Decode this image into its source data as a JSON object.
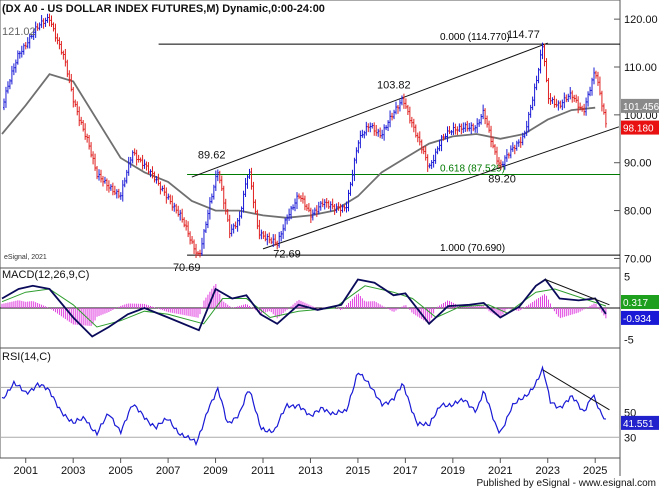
{
  "header": {
    "title": "(DX A0 - US DOLLAR INDEX FUTURES,M) Dynamic,0:00-24:00",
    "overlay_text": "121.02"
  },
  "colors": {
    "up": "#1a1ad6",
    "down": "#e02020",
    "ma": "#707070",
    "fib": "#007a00",
    "macd_hist": "#e040e0",
    "signal": "#2e9e2e",
    "price_badge": "#e81010",
    "ma_badge": "#8a8a8a",
    "macd_badge": "#1ea01e",
    "rsi_badge": "#2222cc"
  },
  "chart_data": [
    {
      "type": "candlestick",
      "title": "(DX A0 - US DOLLAR INDEX FUTURES,M) Dynamic,0:00-24:00",
      "ylim": [
        68,
        124
      ],
      "yticks": [
        "120.00",
        "110.00",
        "100.00",
        "90.00",
        "80.00",
        "70.00"
      ],
      "x_labels": [
        "2001",
        "2003",
        "2005",
        "2007",
        "2009",
        "2011",
        "2013",
        "2015",
        "2017",
        "2019",
        "2021",
        "2023",
        "2025"
      ],
      "path_points": [
        {
          "x": 2000.0,
          "y": 101.5
        },
        {
          "x": 2000.7,
          "y": 113.0
        },
        {
          "x": 2001.3,
          "y": 117.0
        },
        {
          "x": 2002.0,
          "y": 120.5
        },
        {
          "x": 2002.6,
          "y": 112.0
        },
        {
          "x": 2003.0,
          "y": 103.0
        },
        {
          "x": 2003.6,
          "y": 95.0
        },
        {
          "x": 2004.0,
          "y": 87.0
        },
        {
          "x": 2004.6,
          "y": 85.0
        },
        {
          "x": 2005.0,
          "y": 83.0
        },
        {
          "x": 2005.5,
          "y": 92.0
        },
        {
          "x": 2006.0,
          "y": 90.0
        },
        {
          "x": 2006.6,
          "y": 85.0
        },
        {
          "x": 2007.0,
          "y": 83.0
        },
        {
          "x": 2007.5,
          "y": 79.0
        },
        {
          "x": 2008.0,
          "y": 73.0
        },
        {
          "x": 2008.3,
          "y": 70.7
        },
        {
          "x": 2008.7,
          "y": 80.0
        },
        {
          "x": 2009.1,
          "y": 88.0
        },
        {
          "x": 2009.6,
          "y": 76.0
        },
        {
          "x": 2010.0,
          "y": 78.0
        },
        {
          "x": 2010.4,
          "y": 88.5
        },
        {
          "x": 2010.8,
          "y": 76.0
        },
        {
          "x": 2011.3,
          "y": 73.5
        },
        {
          "x": 2011.6,
          "y": 72.7
        },
        {
          "x": 2012.0,
          "y": 79.0
        },
        {
          "x": 2012.5,
          "y": 83.0
        },
        {
          "x": 2013.0,
          "y": 79.0
        },
        {
          "x": 2013.5,
          "y": 82.0
        },
        {
          "x": 2014.0,
          "y": 80.0
        },
        {
          "x": 2014.5,
          "y": 81.0
        },
        {
          "x": 2015.0,
          "y": 94.0
        },
        {
          "x": 2015.5,
          "y": 98.0
        },
        {
          "x": 2016.0,
          "y": 96.0
        },
        {
          "x": 2016.5,
          "y": 100.0
        },
        {
          "x": 2016.9,
          "y": 103.8
        },
        {
          "x": 2017.5,
          "y": 95.0
        },
        {
          "x": 2018.0,
          "y": 89.0
        },
        {
          "x": 2018.5,
          "y": 95.0
        },
        {
          "x": 2019.0,
          "y": 96.5
        },
        {
          "x": 2019.5,
          "y": 98.0
        },
        {
          "x": 2020.0,
          "y": 97.0
        },
        {
          "x": 2020.3,
          "y": 100.5
        },
        {
          "x": 2020.8,
          "y": 92.0
        },
        {
          "x": 2021.0,
          "y": 89.2
        },
        {
          "x": 2021.5,
          "y": 92.5
        },
        {
          "x": 2022.0,
          "y": 96.0
        },
        {
          "x": 2022.5,
          "y": 106.0
        },
        {
          "x": 2022.8,
          "y": 114.7
        },
        {
          "x": 2023.0,
          "y": 104.0
        },
        {
          "x": 2023.5,
          "y": 102.0
        },
        {
          "x": 2024.0,
          "y": 104.0
        },
        {
          "x": 2024.5,
          "y": 101.0
        },
        {
          "x": 2025.0,
          "y": 109.0
        },
        {
          "x": 2025.2,
          "y": 104.0
        },
        {
          "x": 2025.45,
          "y": 98.2
        }
      ],
      "moving_average": [
        {
          "x": 2000.0,
          "y": 96
        },
        {
          "x": 2001.0,
          "y": 102
        },
        {
          "x": 2002.0,
          "y": 108.5
        },
        {
          "x": 2003.0,
          "y": 107
        },
        {
          "x": 2004.0,
          "y": 99
        },
        {
          "x": 2005.0,
          "y": 91
        },
        {
          "x": 2006.0,
          "y": 88
        },
        {
          "x": 2007.0,
          "y": 86
        },
        {
          "x": 2008.0,
          "y": 82
        },
        {
          "x": 2009.0,
          "y": 80
        },
        {
          "x": 2010.0,
          "y": 80
        },
        {
          "x": 2011.0,
          "y": 79
        },
        {
          "x": 2012.0,
          "y": 78.5
        },
        {
          "x": 2013.0,
          "y": 79
        },
        {
          "x": 2014.0,
          "y": 80
        },
        {
          "x": 2015.0,
          "y": 83
        },
        {
          "x": 2016.0,
          "y": 88
        },
        {
          "x": 2017.0,
          "y": 91
        },
        {
          "x": 2018.0,
          "y": 94
        },
        {
          "x": 2019.0,
          "y": 95.5
        },
        {
          "x": 2020.0,
          "y": 96
        },
        {
          "x": 2021.0,
          "y": 95
        },
        {
          "x": 2022.0,
          "y": 96
        },
        {
          "x": 2023.0,
          "y": 99
        },
        {
          "x": 2024.0,
          "y": 101
        },
        {
          "x": 2025.0,
          "y": 101.5
        }
      ],
      "channel_lines": [
        [
          {
            "x": 2008.0,
            "y": 87.0
          },
          {
            "x": 2023.0,
            "y": 115.0
          }
        ],
        [
          {
            "x": 2011.0,
            "y": 72.0
          },
          {
            "x": 2026.0,
            "y": 97.5
          }
        ]
      ],
      "horizontal_levels": [
        {
          "value": 114.77,
          "label": "0.000 (114.770)",
          "color": "#000000",
          "x_from": 2006.6
        },
        {
          "value": 87.529,
          "label": "0.618 (87.529)",
          "color": "#007a00",
          "x_from": 2007.8
        },
        {
          "value": 70.69,
          "label": "1.000 (70.690)",
          "color": "#000000",
          "x_from": 2007.8
        }
      ],
      "annotations": [
        {
          "text": "114.77",
          "x": 2022.8,
          "y": 114.77
        },
        {
          "text": "103.82",
          "x": 2016.9,
          "y": 103.82
        },
        {
          "text": "89.62",
          "x": 2009.1,
          "y": 89.62
        },
        {
          "text": "89.20",
          "x": 2021.0,
          "y": 89.2
        },
        {
          "text": "72.69",
          "x": 2011.6,
          "y": 72.69
        },
        {
          "text": "70.69",
          "x": 2008.3,
          "y": 70.69
        }
      ],
      "price_badges": [
        {
          "text": "101.456",
          "value": 101.456,
          "color": "#8a8a8a"
        },
        {
          "text": "98.180",
          "value": 98.18,
          "color": "#e81010"
        }
      ],
      "watermark": "eSignal, 2021"
    },
    {
      "type": "line",
      "title": "MACD(12,26,9,C)",
      "ylim": [
        -6,
        6
      ],
      "yticks": [
        "5",
        "-5"
      ],
      "series": [
        {
          "name": "MACD",
          "color": "#0a0a5a",
          "points": [
            {
              "x": 2000.0,
              "y": 1.5
            },
            {
              "x": 2000.7,
              "y": 3.0
            },
            {
              "x": 2001.3,
              "y": 3.5
            },
            {
              "x": 2002.0,
              "y": 3.0
            },
            {
              "x": 2003.0,
              "y": -1.5
            },
            {
              "x": 2003.8,
              "y": -4.5
            },
            {
              "x": 2004.5,
              "y": -3.0
            },
            {
              "x": 2005.3,
              "y": -1.0
            },
            {
              "x": 2006.0,
              "y": 0.0
            },
            {
              "x": 2007.0,
              "y": -1.5
            },
            {
              "x": 2008.3,
              "y": -3.5
            },
            {
              "x": 2009.0,
              "y": 3.0
            },
            {
              "x": 2009.7,
              "y": 1.5
            },
            {
              "x": 2010.3,
              "y": 2.0
            },
            {
              "x": 2010.9,
              "y": -1.0
            },
            {
              "x": 2011.6,
              "y": -2.5
            },
            {
              "x": 2012.5,
              "y": 0.5
            },
            {
              "x": 2013.3,
              "y": -0.3
            },
            {
              "x": 2014.3,
              "y": 0.5
            },
            {
              "x": 2015.0,
              "y": 4.5
            },
            {
              "x": 2015.7,
              "y": 4.0
            },
            {
              "x": 2016.5,
              "y": 2.0
            },
            {
              "x": 2017.0,
              "y": 2.3
            },
            {
              "x": 2018.0,
              "y": -2.5
            },
            {
              "x": 2018.8,
              "y": 0.3
            },
            {
              "x": 2019.7,
              "y": 0.5
            },
            {
              "x": 2020.3,
              "y": 0.8
            },
            {
              "x": 2021.0,
              "y": -1.5
            },
            {
              "x": 2021.8,
              "y": 0.2
            },
            {
              "x": 2022.5,
              "y": 3.5
            },
            {
              "x": 2022.9,
              "y": 4.5
            },
            {
              "x": 2023.5,
              "y": 1.5
            },
            {
              "x": 2024.3,
              "y": 1.2
            },
            {
              "x": 2025.0,
              "y": 1.5
            },
            {
              "x": 2025.45,
              "y": -0.934
            }
          ]
        },
        {
          "name": "Signal",
          "color": "#2e9e2e",
          "points": [
            {
              "x": 2000.0,
              "y": 1.0
            },
            {
              "x": 2001.0,
              "y": 2.5
            },
            {
              "x": 2002.0,
              "y": 3.0
            },
            {
              "x": 2003.0,
              "y": 0.5
            },
            {
              "x": 2004.0,
              "y": -3.0
            },
            {
              "x": 2005.0,
              "y": -2.0
            },
            {
              "x": 2006.0,
              "y": -0.5
            },
            {
              "x": 2007.0,
              "y": -1.0
            },
            {
              "x": 2008.5,
              "y": -2.5
            },
            {
              "x": 2009.3,
              "y": 1.5
            },
            {
              "x": 2010.3,
              "y": 1.5
            },
            {
              "x": 2011.3,
              "y": -1.5
            },
            {
              "x": 2012.5,
              "y": -0.5
            },
            {
              "x": 2014.0,
              "y": 0.0
            },
            {
              "x": 2015.3,
              "y": 3.5
            },
            {
              "x": 2016.5,
              "y": 2.5
            },
            {
              "x": 2017.3,
              "y": 1.5
            },
            {
              "x": 2018.3,
              "y": -1.5
            },
            {
              "x": 2019.3,
              "y": 0.2
            },
            {
              "x": 2020.5,
              "y": 0.5
            },
            {
              "x": 2021.3,
              "y": -0.8
            },
            {
              "x": 2022.5,
              "y": 2.5
            },
            {
              "x": 2023.3,
              "y": 3.0
            },
            {
              "x": 2024.5,
              "y": 1.5
            },
            {
              "x": 2025.45,
              "y": 0.317
            }
          ]
        }
      ],
      "divergence_line": [
        {
          "x": 2022.9,
          "y": 4.5
        },
        {
          "x": 2025.6,
          "y": 0.5
        }
      ],
      "badges": [
        {
          "text": "0.317",
          "value": 0.317,
          "color": "#1ea01e"
        },
        {
          "text": "-0.934",
          "value": -0.934,
          "color": "#1a1ad6"
        }
      ]
    },
    {
      "type": "line",
      "title": "RSI(14,C)",
      "ylim": [
        15,
        100
      ],
      "yticks": [
        "50",
        "30"
      ],
      "series": [
        {
          "name": "RSI",
          "color": "#1a1ad6",
          "points": [
            {
              "x": 2000.0,
              "y": 62
            },
            {
              "x": 2000.5,
              "y": 72
            },
            {
              "x": 2001.0,
              "y": 66
            },
            {
              "x": 2001.5,
              "y": 73
            },
            {
              "x": 2002.0,
              "y": 66
            },
            {
              "x": 2002.5,
              "y": 52
            },
            {
              "x": 2003.0,
              "y": 40
            },
            {
              "x": 2003.5,
              "y": 46
            },
            {
              "x": 2004.0,
              "y": 33
            },
            {
              "x": 2004.5,
              "y": 48
            },
            {
              "x": 2005.0,
              "y": 36
            },
            {
              "x": 2005.5,
              "y": 55
            },
            {
              "x": 2006.0,
              "y": 47
            },
            {
              "x": 2006.5,
              "y": 38
            },
            {
              "x": 2007.0,
              "y": 44
            },
            {
              "x": 2007.5,
              "y": 34
            },
            {
              "x": 2008.2,
              "y": 24
            },
            {
              "x": 2008.7,
              "y": 55
            },
            {
              "x": 2009.1,
              "y": 68
            },
            {
              "x": 2009.5,
              "y": 40
            },
            {
              "x": 2010.0,
              "y": 50
            },
            {
              "x": 2010.4,
              "y": 68
            },
            {
              "x": 2010.9,
              "y": 38
            },
            {
              "x": 2011.5,
              "y": 35
            },
            {
              "x": 2012.0,
              "y": 55
            },
            {
              "x": 2012.5,
              "y": 57
            },
            {
              "x": 2013.0,
              "y": 45
            },
            {
              "x": 2013.5,
              "y": 55
            },
            {
              "x": 2014.0,
              "y": 48
            },
            {
              "x": 2014.5,
              "y": 50
            },
            {
              "x": 2015.0,
              "y": 84
            },
            {
              "x": 2015.5,
              "y": 70
            },
            {
              "x": 2016.0,
              "y": 58
            },
            {
              "x": 2016.5,
              "y": 60
            },
            {
              "x": 2016.9,
              "y": 72
            },
            {
              "x": 2017.5,
              "y": 42
            },
            {
              "x": 2018.0,
              "y": 38
            },
            {
              "x": 2018.5,
              "y": 58
            },
            {
              "x": 2019.0,
              "y": 55
            },
            {
              "x": 2019.5,
              "y": 60
            },
            {
              "x": 2020.0,
              "y": 52
            },
            {
              "x": 2020.3,
              "y": 66
            },
            {
              "x": 2020.8,
              "y": 40
            },
            {
              "x": 2021.0,
              "y": 35
            },
            {
              "x": 2021.5,
              "y": 54
            },
            {
              "x": 2022.0,
              "y": 62
            },
            {
              "x": 2022.5,
              "y": 74
            },
            {
              "x": 2022.8,
              "y": 84
            },
            {
              "x": 2023.1,
              "y": 58
            },
            {
              "x": 2023.5,
              "y": 55
            },
            {
              "x": 2024.0,
              "y": 62
            },
            {
              "x": 2024.5,
              "y": 50
            },
            {
              "x": 2024.9,
              "y": 66
            },
            {
              "x": 2025.2,
              "y": 50
            },
            {
              "x": 2025.45,
              "y": 41.551
            }
          ]
        }
      ],
      "reference_levels": [
        70,
        30
      ],
      "divergence_line": [
        {
          "x": 2022.8,
          "y": 84
        },
        {
          "x": 2025.6,
          "y": 52
        }
      ],
      "badge": {
        "text": "41.551",
        "value": 41.551,
        "color": "#2222cc"
      }
    }
  ],
  "footer": {
    "publisher": "Published by eSignal - www.esignal.com"
  }
}
